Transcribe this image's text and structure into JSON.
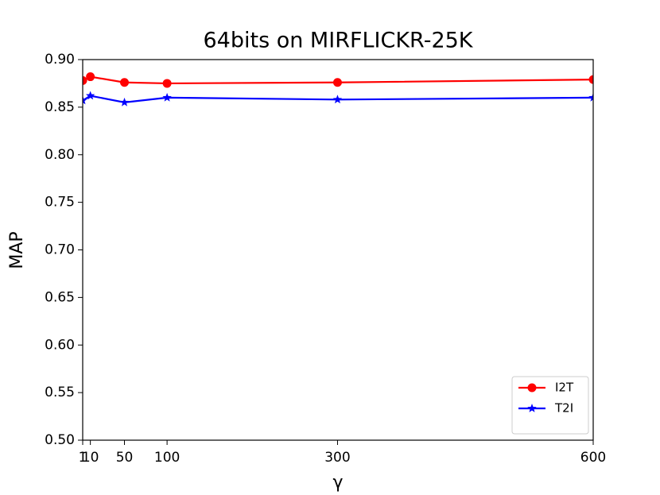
{
  "chart_data": {
    "type": "line",
    "title": "64bits on MIRFLICKR-25K",
    "x_label": "γ",
    "y_label": "MAP",
    "x": [
      1,
      10,
      50,
      100,
      300,
      600
    ],
    "series": [
      {
        "name": "I2T",
        "color": "#ff0000",
        "marker": "circle",
        "values": [
          0.878,
          0.882,
          0.876,
          0.875,
          0.876,
          0.879
        ]
      },
      {
        "name": "T2I",
        "color": "#0000ff",
        "marker": "star",
        "values": [
          0.857,
          0.862,
          0.855,
          0.86,
          0.858,
          0.86
        ]
      }
    ],
    "xlim": [
      1,
      600
    ],
    "xticks": [
      1,
      10,
      50,
      100,
      300,
      600
    ],
    "ylim": [
      0.5,
      0.9
    ],
    "yticks": [
      {
        "value": 0.5,
        "label": "0.50"
      },
      {
        "value": 0.55,
        "label": "0.55"
      },
      {
        "value": 0.6,
        "label": "0.60"
      },
      {
        "value": 0.65,
        "label": "0.65"
      },
      {
        "value": 0.7,
        "label": "0.70"
      },
      {
        "value": 0.75,
        "label": "0.75"
      },
      {
        "value": 0.8,
        "label": "0.80"
      },
      {
        "value": 0.85,
        "label": "0.85"
      },
      {
        "value": 0.9,
        "label": "0.90"
      }
    ],
    "legend": "lower right",
    "grid": false
  }
}
